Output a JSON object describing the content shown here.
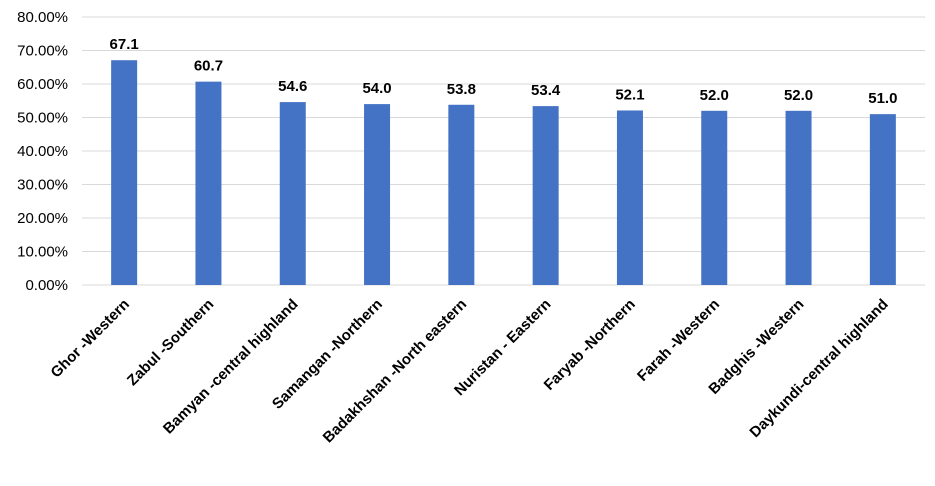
{
  "chart_data": {
    "type": "bar",
    "categories": [
      "Ghor -Western",
      "Zabul -Southern",
      "Bamyan -central highland",
      "Samangan -Northern",
      "Badakhshan -North eastern",
      "Nuristan - Eastern",
      "Faryab -Northern",
      "Farah -Western",
      "Badghis -Western",
      "Daykundi-central highland"
    ],
    "values": [
      67.1,
      60.7,
      54.6,
      54.0,
      53.8,
      53.4,
      52.1,
      52.0,
      52.0,
      51.0
    ],
    "data_labels": [
      "67.1",
      "60.7",
      "54.6",
      "54.0",
      "53.8",
      "53.4",
      "52.1",
      "52.0",
      "52.0",
      "51.0"
    ],
    "yticks": [
      0,
      10,
      20,
      30,
      40,
      50,
      60,
      70,
      80
    ],
    "ytick_labels": [
      "0.00%",
      "10.00%",
      "20.00%",
      "30.00%",
      "40.00%",
      "50.00%",
      "60.00%",
      "70.00%",
      "80.00%"
    ],
    "ylim": [
      0,
      80
    ],
    "grid": true,
    "legend": "none",
    "title": "",
    "xlabel": "",
    "ylabel": "",
    "colors": {
      "bar": "#4472C4",
      "grid": "#D9D9D9"
    }
  }
}
